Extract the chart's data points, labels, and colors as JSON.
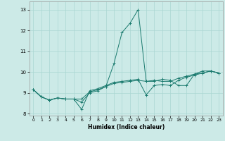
{
  "xlabel": "Humidex (Indice chaleur)",
  "ylabel": "",
  "background_color": "#cceae7",
  "grid_color": "#aad6d2",
  "line_color": "#1a7a6e",
  "x_values": [
    0,
    1,
    2,
    3,
    4,
    5,
    6,
    7,
    8,
    9,
    10,
    11,
    12,
    13,
    14,
    15,
    16,
    17,
    18,
    19,
    20,
    21,
    22,
    23
  ],
  "line1_y": [
    9.15,
    8.8,
    8.65,
    8.75,
    8.7,
    8.7,
    8.55,
    9.0,
    9.1,
    9.3,
    10.4,
    11.9,
    12.35,
    13.0,
    9.55,
    9.55,
    9.65,
    9.6,
    9.35,
    9.35,
    9.9,
    10.05,
    10.05,
    9.95
  ],
  "line2_y": [
    9.15,
    8.8,
    8.65,
    8.75,
    8.7,
    8.7,
    8.2,
    9.1,
    9.2,
    9.35,
    9.5,
    9.55,
    9.6,
    9.65,
    8.9,
    9.35,
    9.4,
    9.35,
    9.6,
    9.75,
    9.85,
    9.95,
    10.05,
    9.95
  ],
  "line3_y": [
    9.15,
    8.8,
    8.65,
    8.75,
    8.7,
    8.7,
    8.7,
    9.05,
    9.15,
    9.3,
    9.45,
    9.5,
    9.55,
    9.6,
    9.55,
    9.6,
    9.55,
    9.55,
    9.7,
    9.8,
    9.9,
    9.95,
    10.05,
    9.95
  ],
  "ylim": [
    7.9,
    13.4
  ],
  "xlim": [
    -0.5,
    23.5
  ],
  "yticks": [
    8,
    9,
    10,
    11,
    12,
    13
  ],
  "xticks": [
    0,
    1,
    2,
    3,
    4,
    5,
    6,
    7,
    8,
    9,
    10,
    11,
    12,
    13,
    14,
    15,
    16,
    17,
    18,
    19,
    20,
    21,
    22,
    23
  ]
}
